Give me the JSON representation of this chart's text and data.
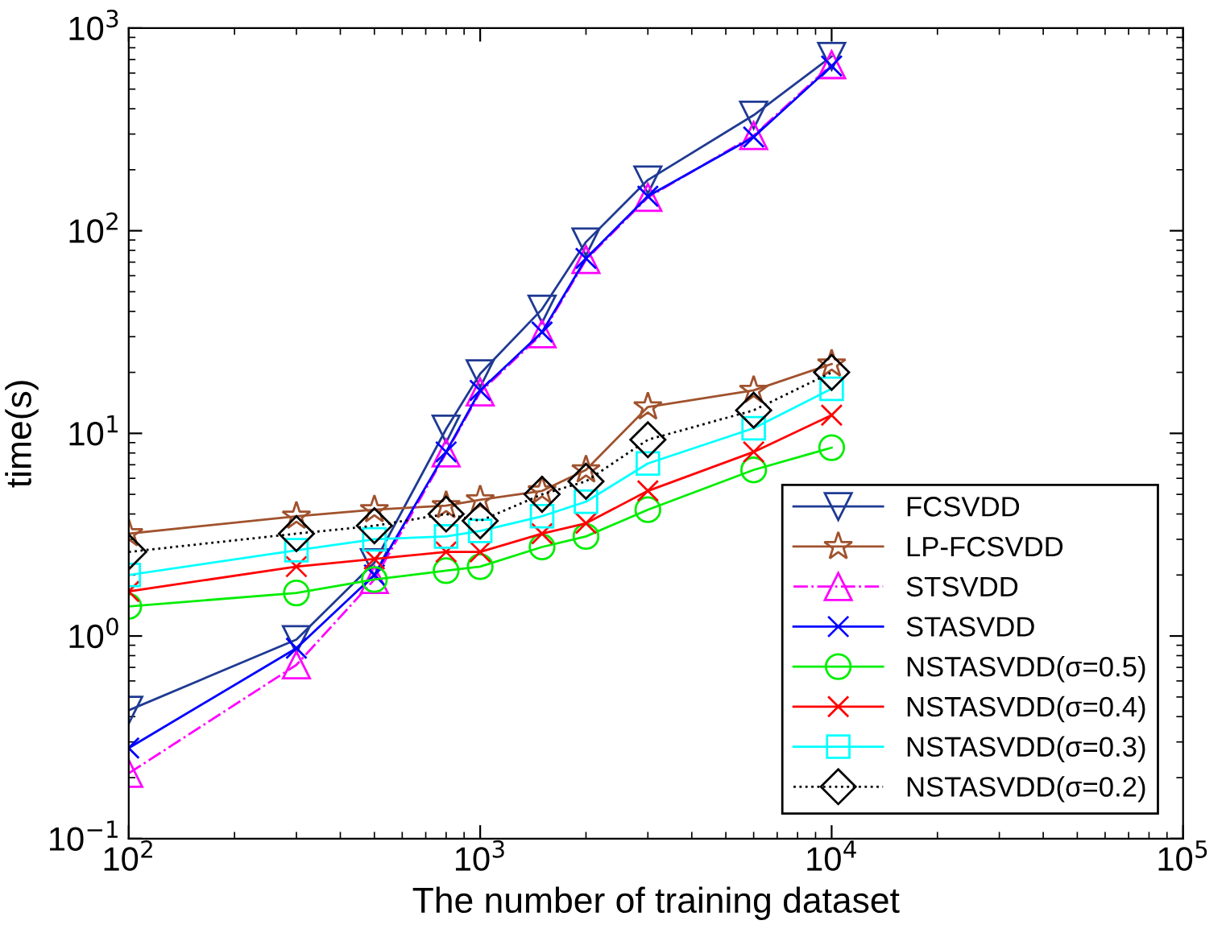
{
  "chart_data": {
    "type": "line",
    "xlabel": "The number of training dataset",
    "ylabel": "time(s)",
    "log": "xy",
    "grid": false,
    "legend": "bottom right",
    "x": [
      100,
      300,
      500,
      800,
      1000,
      1500,
      2000,
      3000,
      6000,
      10000
    ],
    "xlim": [
      100,
      100000
    ],
    "xticks": [
      {
        "value": 100,
        "label": "10$^{2}$"
      },
      {
        "value": 1000,
        "label": "10$^{3}$"
      },
      {
        "value": 10000,
        "label": "10$^{4}$"
      },
      {
        "value": 100000,
        "label": "10$^{5}$"
      }
    ],
    "ylim": [
      0.1,
      1000
    ],
    "yticks": [
      {
        "value": 0.1,
        "label": "10$^{−1}$"
      },
      {
        "value": 1,
        "label": "10$^{0}$"
      },
      {
        "value": 10,
        "label": "10$^{1}$"
      },
      {
        "value": 100,
        "label": "10$^{2}$"
      },
      {
        "value": 1000,
        "label": "10$^{3}$"
      }
    ],
    "series": [
      {
        "name": "FCSVDD",
        "color": "#1f3a93",
        "marker": "triangle_down",
        "line_style": "solid",
        "values": [
          0.43,
          0.96,
          2.3,
          10.5,
          19.7,
          41,
          88,
          178,
          372,
          725
        ]
      },
      {
        "name": "LP-FCSVDD",
        "color": "#a0522d",
        "marker": "star",
        "line_style": "solid",
        "values": [
          3.2,
          3.9,
          4.2,
          4.4,
          4.7,
          5.2,
          6.6,
          13.5,
          16.3,
          22
        ]
      },
      {
        "name": "STSVDD",
        "color": "#ff00ff",
        "marker": "triangle",
        "line_style": "dashdot",
        "values": [
          0.21,
          0.72,
          1.9,
          8.0,
          16,
          31,
          72,
          146,
          295,
          660
        ]
      },
      {
        "name": "STASVDD",
        "color": "#0000ff",
        "marker": "cross",
        "line_style": "solid",
        "values": [
          0.28,
          0.87,
          2.0,
          8.1,
          16.3,
          31.6,
          73,
          148,
          290,
          650
        ]
      },
      {
        "name": "NSTASVDD(σ=0.5)",
        "color": "#00ee00",
        "marker": "circle",
        "line_style": "solid",
        "values": [
          1.4,
          1.63,
          1.9,
          2.1,
          2.2,
          2.75,
          3.1,
          4.2,
          6.6,
          8.5
        ]
      },
      {
        "name": "NSTASVDD(σ=0.4)",
        "color": "#ff0000",
        "marker": "cross",
        "line_style": "solid",
        "values": [
          1.66,
          2.2,
          2.4,
          2.6,
          2.6,
          3.2,
          3.6,
          5.2,
          8.1,
          12.3
        ]
      },
      {
        "name": "NSTASVDD(σ=0.3)",
        "color": "#00ffff",
        "marker": "square",
        "line_style": "solid",
        "values": [
          2.0,
          2.65,
          3.0,
          3.1,
          3.3,
          3.9,
          4.6,
          7.1,
          10.6,
          16.6
        ]
      },
      {
        "name": "NSTASVDD(σ=0.2)",
        "color": "#000000",
        "marker": "diamond",
        "line_style": "dotted",
        "values": [
          2.6,
          3.2,
          3.5,
          4.0,
          3.7,
          5.0,
          5.8,
          9.3,
          13,
          20
        ]
      }
    ]
  }
}
